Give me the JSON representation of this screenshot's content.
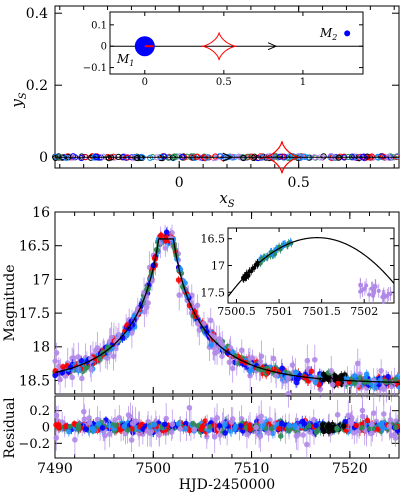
{
  "chart_data": [
    {
      "id": "geometry",
      "type": "scatter",
      "xlabel": "x",
      "xlabel_sub": "S",
      "ylabel": "y",
      "ylabel_sub": "S",
      "xlim": [
        -0.52,
        0.92
      ],
      "ylim": [
        -0.03,
        0.42
      ],
      "xticks": [
        {
          "v": 0,
          "t": "0"
        },
        {
          "v": 0.5,
          "t": "0.5"
        }
      ],
      "yticks": [
        {
          "v": 0,
          "t": "0"
        },
        {
          "v": 0.2,
          "t": "0.2"
        },
        {
          "v": 0.4,
          "t": "0.4"
        }
      ],
      "caustic": {
        "center": [
          0.43,
          0.0
        ],
        "half_width": 0.075,
        "half_height": 0.045,
        "color": "#ff0000"
      },
      "trajectory": {
        "y": 0.0,
        "arrow_at_x": 0.22
      },
      "inset": {
        "xlim": [
          -0.22,
          1.38
        ],
        "ylim": [
          -0.13,
          0.16
        ],
        "xticks": [
          {
            "v": 0,
            "t": "0"
          },
          {
            "v": 0.5,
            "t": "0.5"
          },
          {
            "v": 1,
            "t": "1"
          }
        ],
        "yticks": [
          {
            "v": 0.1,
            "t": "0.1"
          },
          {
            "v": 0,
            "t": "0"
          },
          {
            "v": -0.1,
            "t": "−0.1"
          }
        ],
        "m1_label": "M",
        "m1_sub": "1",
        "m2_label": "M",
        "m2_sub": "2",
        "m1": [
          0.0,
          0.0
        ],
        "m2": [
          1.28,
          0.06
        ],
        "caustic": {
          "center": [
            0.47,
            0.0
          ],
          "half_width": 0.11,
          "half_height": 0.065
        },
        "arrow_at_x": 0.83
      }
    },
    {
      "id": "lightcurve",
      "type": "scatter",
      "ylabel": "Magnitude",
      "xlim": [
        7490,
        7525
      ],
      "ylim": [
        18.7,
        16.0
      ],
      "yticks": [
        {
          "v": 16,
          "t": "16"
        },
        {
          "v": 16.5,
          "t": "16.5"
        },
        {
          "v": 17,
          "t": "17"
        },
        {
          "v": 17.5,
          "t": "17.5"
        },
        {
          "v": 18,
          "t": "18"
        },
        {
          "v": 18.5,
          "t": "18.5"
        }
      ],
      "model": {
        "peak_x": 7501.3,
        "peak_mag": 16.4,
        "base_mag": 18.55,
        "tE": 9.0,
        "color": "#000000"
      },
      "series_colors": [
        "#ff0000",
        "#0000ff",
        "#2e8b57",
        "#1e90ff",
        "#b088e8",
        "#000000"
      ],
      "inset": {
        "xlim": [
          7500.4,
          7502.35
        ],
        "ylim": [
          17.7,
          16.3
        ],
        "xticks": [
          {
            "v": 7500.5,
            "t": "7500.5"
          },
          {
            "v": 7501,
            "t": "7501"
          },
          {
            "v": 7501.5,
            "t": "7501.5"
          },
          {
            "v": 7502,
            "t": "7502"
          }
        ],
        "yticks": [
          {
            "v": 16.5,
            "t": "16.5"
          },
          {
            "v": 17,
            "t": "17"
          },
          {
            "v": 17.5,
            "t": "17.5"
          }
        ]
      }
    },
    {
      "id": "residual",
      "type": "scatter",
      "ylabel": "Residual",
      "xlabel": "HJD-2450000",
      "xlim": [
        7490,
        7525
      ],
      "ylim": [
        -0.38,
        0.38
      ],
      "xticks": [
        {
          "v": 7490,
          "t": "7490"
        },
        {
          "v": 7500,
          "t": "7500"
        },
        {
          "v": 7510,
          "t": "7510"
        },
        {
          "v": 7520,
          "t": "7520"
        }
      ],
      "yticks": [
        {
          "v": 0.2,
          "t": "0.2"
        },
        {
          "v": 0,
          "t": "0"
        },
        {
          "v": -0.2,
          "t": "−0.2"
        }
      ]
    }
  ]
}
